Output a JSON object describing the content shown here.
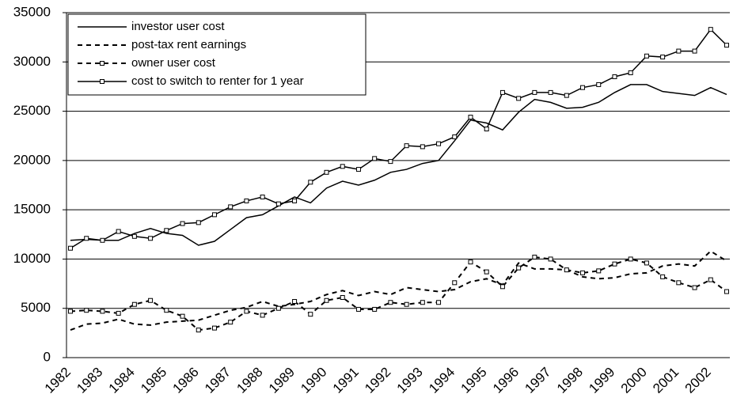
{
  "chart_data": {
    "type": "line",
    "categories": [
      "1982",
      null,
      "1983",
      null,
      "1984",
      null,
      "1985",
      null,
      "1986",
      null,
      "1987",
      null,
      "1988",
      null,
      "1989",
      null,
      "1990",
      null,
      "1991",
      null,
      "1992",
      null,
      "1993",
      null,
      "1994",
      null,
      "1995",
      null,
      "1996",
      null,
      "1997",
      null,
      "1998",
      null,
      "1999",
      null,
      "2000",
      null,
      "2001",
      null,
      "2002",
      null
    ],
    "ylim": [
      0,
      35000
    ],
    "yticks": [
      0,
      5000,
      10000,
      15000,
      20000,
      25000,
      30000,
      35000
    ],
    "grid": true,
    "legend": "top-left",
    "series": [
      {
        "name": "investor user cost",
        "color": "#000000",
        "dashed": false,
        "marker": "none",
        "values": [
          11900,
          12000,
          11900,
          11900,
          12600,
          13100,
          12600,
          12400,
          11400,
          11800,
          13000,
          14200,
          14500,
          15400,
          16300,
          15700,
          17200,
          17900,
          17500,
          18000,
          18800,
          19100,
          19700,
          20000,
          22000,
          24100,
          23800,
          23100,
          24900,
          26200,
          25900,
          25300,
          25400,
          25900,
          26900,
          27700,
          27700,
          27000,
          26800,
          26600,
          27400,
          26700
        ]
      },
      {
        "name": "post-tax rent earnings",
        "color": "#000000",
        "dashed": true,
        "marker": "none",
        "values": [
          2800,
          3400,
          3500,
          3900,
          3400,
          3300,
          3600,
          3700,
          3800,
          4300,
          4800,
          5100,
          5700,
          5200,
          5400,
          5700,
          6400,
          6800,
          6300,
          6700,
          6400,
          7100,
          6900,
          6700,
          6900,
          7700,
          8000,
          7400,
          9600,
          9000,
          9000,
          8900,
          8200,
          8000,
          8100,
          8500,
          8600,
          9300,
          9500,
          9300,
          10800,
          9800
        ]
      },
      {
        "name": "owner user cost",
        "color": "#000000",
        "dashed": true,
        "marker": "square",
        "values": [
          4700,
          4800,
          4700,
          4500,
          5400,
          5800,
          4800,
          4200,
          2800,
          3000,
          3600,
          4700,
          4300,
          5000,
          5700,
          4400,
          5800,
          6100,
          4900,
          4900,
          5600,
          5400,
          5600,
          5600,
          7600,
          9700,
          8700,
          7200,
          9100,
          10200,
          10000,
          8900,
          8600,
          8800,
          9500,
          10000,
          9600,
          8200,
          7600,
          7100,
          7900,
          6700
        ]
      },
      {
        "name": "cost to switch to renter for 1 year",
        "color": "#000000",
        "dashed": false,
        "marker": "square",
        "values": [
          11100,
          12100,
          11900,
          12800,
          12300,
          12100,
          12900,
          13600,
          13700,
          14500,
          15300,
          15900,
          16300,
          15600,
          15900,
          17800,
          18800,
          19400,
          19100,
          20200,
          19900,
          21500,
          21400,
          21700,
          22400,
          24400,
          23200,
          26900,
          26300,
          26900,
          26900,
          26600,
          27400,
          27700,
          28500,
          28900,
          30600,
          30500,
          31100,
          31100,
          33300,
          31700
        ]
      }
    ]
  }
}
